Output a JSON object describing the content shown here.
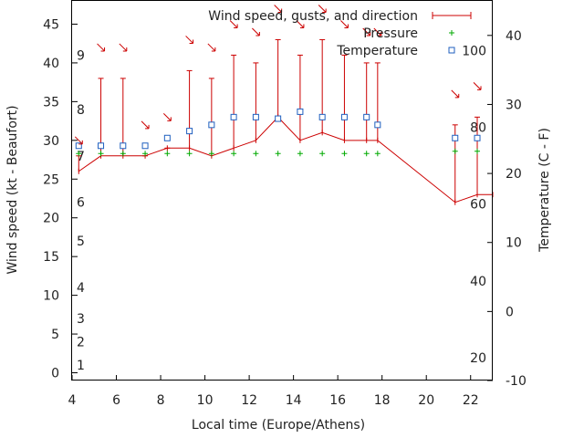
{
  "chart_data": {
    "type": "line",
    "xlabel": "Local time (Europe/Athens)",
    "ylabel_left": "Wind speed (kt - Beaufort)",
    "ylabel_right": "Temperature (C - F)",
    "xlim": [
      4,
      23
    ],
    "ylim_left": [
      -1,
      48
    ],
    "ylim_right": [
      -10,
      45
    ],
    "x_ticks": [
      4,
      6,
      8,
      10,
      12,
      14,
      16,
      18,
      20,
      22
    ],
    "y_left_ticks": [
      0,
      5,
      10,
      15,
      20,
      25,
      30,
      35,
      40,
      45
    ],
    "y_right_ticks": [
      -10,
      0,
      10,
      20,
      30,
      40
    ],
    "beaufort_ticks": [
      {
        "label": "1",
        "kt": 1
      },
      {
        "label": "2",
        "kt": 4
      },
      {
        "label": "3",
        "kt": 7
      },
      {
        "label": "4",
        "kt": 11
      },
      {
        "label": "5",
        "kt": 17
      },
      {
        "label": "6",
        "kt": 22
      },
      {
        "label": "7",
        "kt": 28
      },
      {
        "label": "8",
        "kt": 34
      },
      {
        "label": "9",
        "kt": 41
      }
    ],
    "fahrenheit_ticks": [
      {
        "label": "20",
        "c": -6.7
      },
      {
        "label": "40",
        "c": 4.4
      },
      {
        "label": "60",
        "c": 15.6
      },
      {
        "label": "80",
        "c": 26.7
      },
      {
        "label": "100",
        "c": 37.8
      }
    ],
    "legend": [
      "Wind speed, gusts, and direction",
      "Pressure",
      "Temperature"
    ],
    "colors": {
      "wind": "#cc0000",
      "pressure": "#00aa00",
      "temperature": "#1f5fbf",
      "arrow": "#cc0000"
    },
    "series": {
      "wind": {
        "x": [
          4.3,
          5.3,
          6.3,
          7.3,
          8.3,
          9.3,
          10.3,
          11.3,
          12.3,
          13.3,
          14.3,
          15.3,
          16.3,
          17.3,
          17.8,
          21.3,
          22.3,
          23.0
        ],
        "speed": [
          26,
          28,
          28,
          28,
          29,
          29,
          28,
          29,
          30,
          33,
          30,
          31,
          30,
          30,
          30,
          22,
          23,
          23
        ],
        "gust": [
          28,
          38,
          38,
          28,
          29,
          39,
          38,
          41,
          40,
          43,
          41,
          43,
          41,
          40,
          40,
          32,
          33,
          null
        ]
      },
      "pressure": {
        "x": [
          4.3,
          5.3,
          6.3,
          7.3,
          8.3,
          9.3,
          10.3,
          11.3,
          12.3,
          13.3,
          14.3,
          15.3,
          16.3,
          17.3,
          17.8,
          21.3,
          22.3
        ],
        "y": [
          28.3,
          28.3,
          28.3,
          28.3,
          28.3,
          28.3,
          28.3,
          28.3,
          28.3,
          28.3,
          28.3,
          28.3,
          28.3,
          28.3,
          28.3,
          28.6,
          28.6
        ]
      },
      "temperature": {
        "x": [
          4.3,
          5.3,
          6.3,
          7.3,
          8.3,
          9.3,
          10.3,
          11.3,
          12.3,
          13.3,
          14.3,
          15.3,
          16.3,
          17.3,
          17.8,
          21.3,
          22.3
        ],
        "y": [
          29.3,
          29.3,
          29.3,
          29.3,
          30.3,
          31.2,
          32.0,
          33.0,
          33.0,
          32.8,
          33.7,
          33.0,
          33.0,
          33.0,
          32.0,
          30.3,
          30.3
        ]
      },
      "arrows": {
        "x": [
          4.3,
          5.3,
          6.3,
          7.3,
          8.3,
          9.3,
          10.3,
          11.3,
          12.3,
          13.3,
          14.3,
          15.3,
          16.3,
          17.3,
          17.8,
          21.3,
          22.3
        ],
        "y": [
          30,
          42,
          42,
          32,
          33,
          43,
          42,
          45,
          44,
          47,
          45,
          47,
          45,
          44,
          44,
          36,
          37
        ]
      }
    }
  }
}
